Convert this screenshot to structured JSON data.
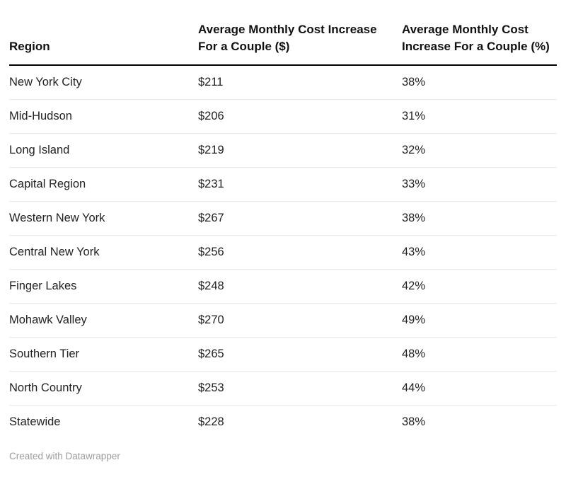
{
  "chart_data": {
    "type": "table",
    "columns": [
      "Region",
      "Average Monthly Cost Increase For a Couple ($)",
      "Average Monthly Cost Increase For a Couple (%)"
    ],
    "rows": [
      [
        "New York City",
        "$211",
        "38%"
      ],
      [
        "Mid-Hudson",
        "$206",
        "31%"
      ],
      [
        "Long Island",
        "$219",
        "32%"
      ],
      [
        "Capital Region",
        "$231",
        "33%"
      ],
      [
        "Western New York",
        "$267",
        "38%"
      ],
      [
        "Central New York",
        "$256",
        "43%"
      ],
      [
        "Finger Lakes",
        "$248",
        "42%"
      ],
      [
        "Mohawk Valley",
        "$270",
        "49%"
      ],
      [
        "Southern Tier",
        "$265",
        "48%"
      ],
      [
        "North Country",
        "$253",
        "44%"
      ],
      [
        "Statewide",
        "$228",
        "38%"
      ]
    ],
    "numeric": {
      "dollar_values": [
        211,
        206,
        219,
        231,
        267,
        256,
        248,
        270,
        265,
        253,
        228
      ],
      "percent_values": [
        38,
        31,
        32,
        33,
        38,
        43,
        42,
        49,
        48,
        44,
        38
      ]
    }
  },
  "footer": {
    "attribution": "Created with Datawrapper"
  },
  "colors": {
    "background": "#ffffff",
    "header_text": "#111111",
    "body_text": "#222222",
    "header_border": "#000000",
    "row_border": "#e8e8e8",
    "attribution_text": "#9c9c9c"
  }
}
